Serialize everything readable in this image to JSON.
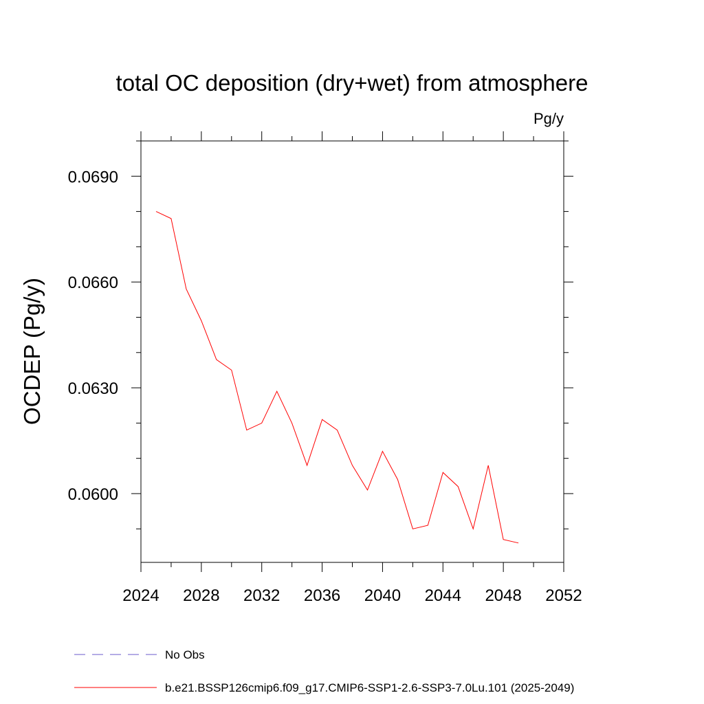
{
  "chart_data": {
    "type": "line",
    "title": "total OC deposition (dry+wet) from atmosphere",
    "units": "Pg/y",
    "ylabel": "OCDEP  (Pg/y)",
    "xlabel": "",
    "xlim": [
      2024,
      2052
    ],
    "ylim": [
      0.05805,
      0.07
    ],
    "x_ticks": [
      2024,
      2028,
      2032,
      2036,
      2040,
      2044,
      2048,
      2052
    ],
    "x_tick_labels": [
      "2024",
      "2028",
      "2032",
      "2036",
      "2040",
      "2044",
      "2048",
      "2052"
    ],
    "x_minor_ticks": [
      2026,
      2030,
      2034,
      2038,
      2042,
      2046,
      2050
    ],
    "y_ticks": [
      0.06,
      0.063,
      0.066,
      0.069
    ],
    "y_tick_labels": [
      "0.0600",
      "0.0630",
      "0.0660",
      "0.0690"
    ],
    "y_minor_ticks": [
      0.059,
      0.061,
      0.062,
      0.064,
      0.065,
      0.067,
      0.068,
      0.07
    ],
    "grid": false,
    "legend_position": "bottom",
    "series": [
      {
        "name": "No Obs",
        "color": "#6a5acd",
        "dash": "dashed",
        "x": [],
        "values": []
      },
      {
        "name": "b.e21.BSSP126cmip6.f09_g17.CMIP6-SSP1-2.6-SSP3-7.0Lu.101 (2025-2049)",
        "color": "#ff0000",
        "dash": "solid",
        "x": [
          2025,
          2026,
          2027,
          2028,
          2029,
          2030,
          2031,
          2032,
          2033,
          2034,
          2035,
          2036,
          2037,
          2038,
          2039,
          2040,
          2041,
          2042,
          2043,
          2044,
          2045,
          2046,
          2047,
          2048,
          2049
        ],
        "values": [
          0.068,
          0.0678,
          0.0658,
          0.0649,
          0.0638,
          0.0635,
          0.0618,
          0.062,
          0.0629,
          0.062,
          0.0608,
          0.0621,
          0.0618,
          0.0608,
          0.0601,
          0.0612,
          0.0604,
          0.059,
          0.0591,
          0.0606,
          0.0602,
          0.059,
          0.0608,
          0.0587,
          0.0586
        ]
      }
    ]
  }
}
